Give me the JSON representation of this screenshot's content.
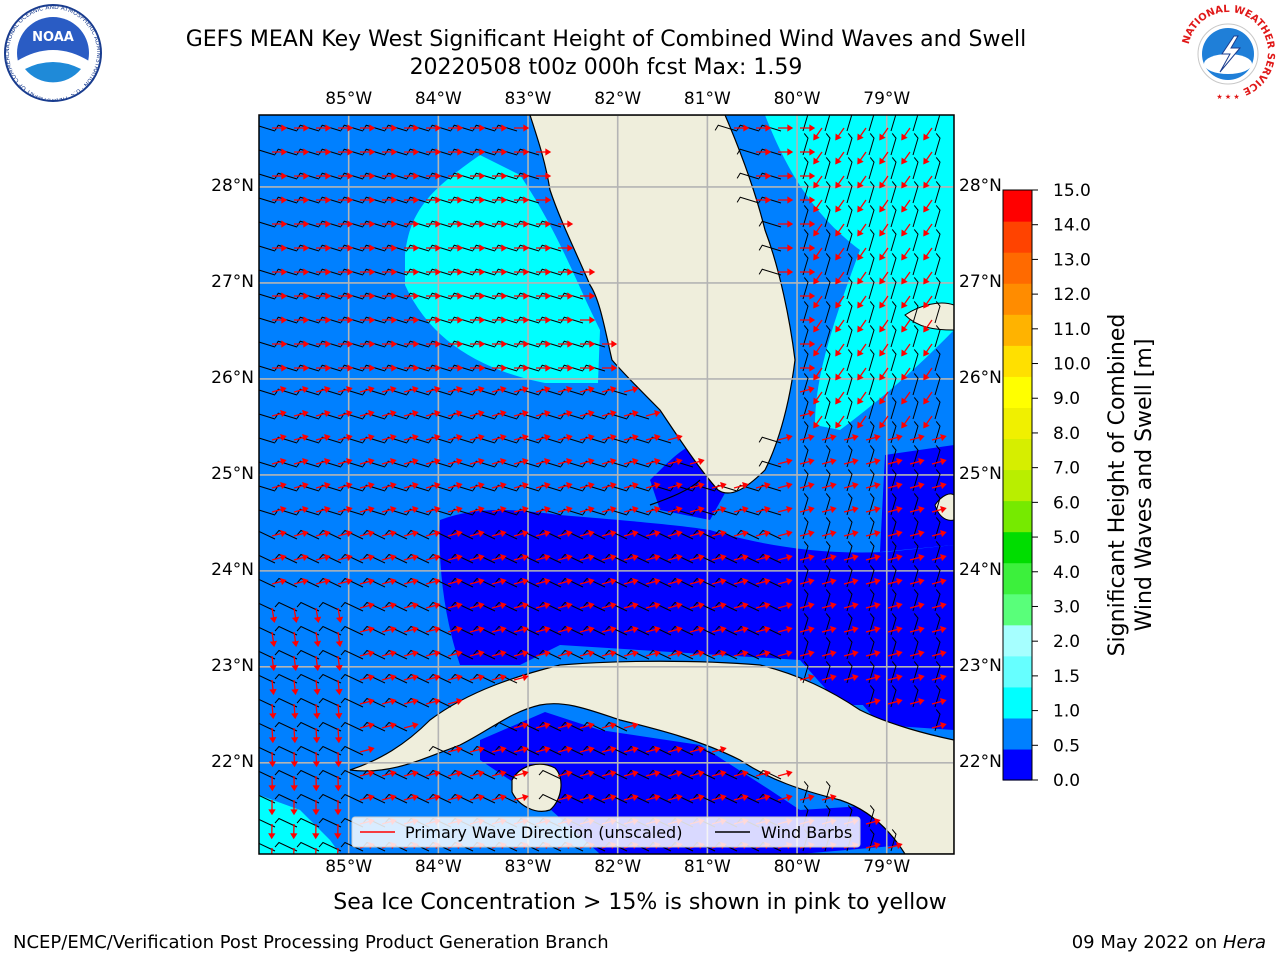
{
  "header": {
    "title_line1": "GEFS MEAN Key West Significant Height of Combined Wind Waves and Swell",
    "title_line2": "20220508 t00z 000h fcst   Max: 1.59"
  },
  "logos": {
    "noaa_text": "NOAA",
    "noaa_ring_text": "NATIONAL OCEANIC AND ATMOSPHERIC ADMINISTRATION · U.S. DEPARTMENT OF COMMERCE",
    "nws_ring_text": "NATIONAL WEATHER SERVICE"
  },
  "map": {
    "lon_labels": [
      "85°W",
      "84°W",
      "83°W",
      "82°W",
      "81°W",
      "80°W",
      "79°W"
    ],
    "lat_labels": [
      "28°N",
      "27°N",
      "26°N",
      "25°N",
      "24°N",
      "23°N",
      "22°N"
    ],
    "lon_range": [
      -86.0,
      -78.25
    ],
    "lat_range": [
      21.05,
      28.75
    ],
    "grid": true,
    "colors": {
      "land": "#efeedc",
      "ocean_0_0.5": "#0000ff",
      "ocean_0.5_1.0": "#0080ff",
      "ocean_1.0_1.5": "#00ffff",
      "ocean_1.5_2.0": "#66ffff",
      "wave_arrow": "#ff0000",
      "wind_barb": "#000000",
      "grid": "#b4b4b4"
    },
    "legend": {
      "placement": "lower-center",
      "wave_label": "Primary Wave Direction (unscaled)",
      "wind_label": "Wind Barbs"
    }
  },
  "colorbar": {
    "ticks": [
      "15.0",
      "14.0",
      "13.0",
      "12.0",
      "11.0",
      "10.0",
      "9.0",
      "8.0",
      "7.0",
      "6.0",
      "5.0",
      "4.0",
      "3.0",
      "2.0",
      "1.5",
      "1.0",
      "0.5",
      "0.0"
    ],
    "label_line1": "Significant Height of Combined",
    "label_line2": "Wind Waves and Swell [m]",
    "colors_bottom_to_top": [
      "#0000ff",
      "#0080ff",
      "#00ffff",
      "#66ffff",
      "#a6ffff",
      "#59ff7a",
      "#3cf03c",
      "#00dd00",
      "#76ea00",
      "#b9ee00",
      "#d6ee00",
      "#f0f000",
      "#ffff00",
      "#ffe000",
      "#ffb300",
      "#ff8c00",
      "#ff6a00",
      "#ff4300",
      "#ff0000"
    ]
  },
  "caption": "Sea Ice Concentration > 15% is shown in pink to yellow",
  "footer": {
    "left": "NCEP/EMC/Verification Post Processing Product Generation Branch",
    "right_date": "09 May 2022 on ",
    "right_host": "Hera"
  }
}
